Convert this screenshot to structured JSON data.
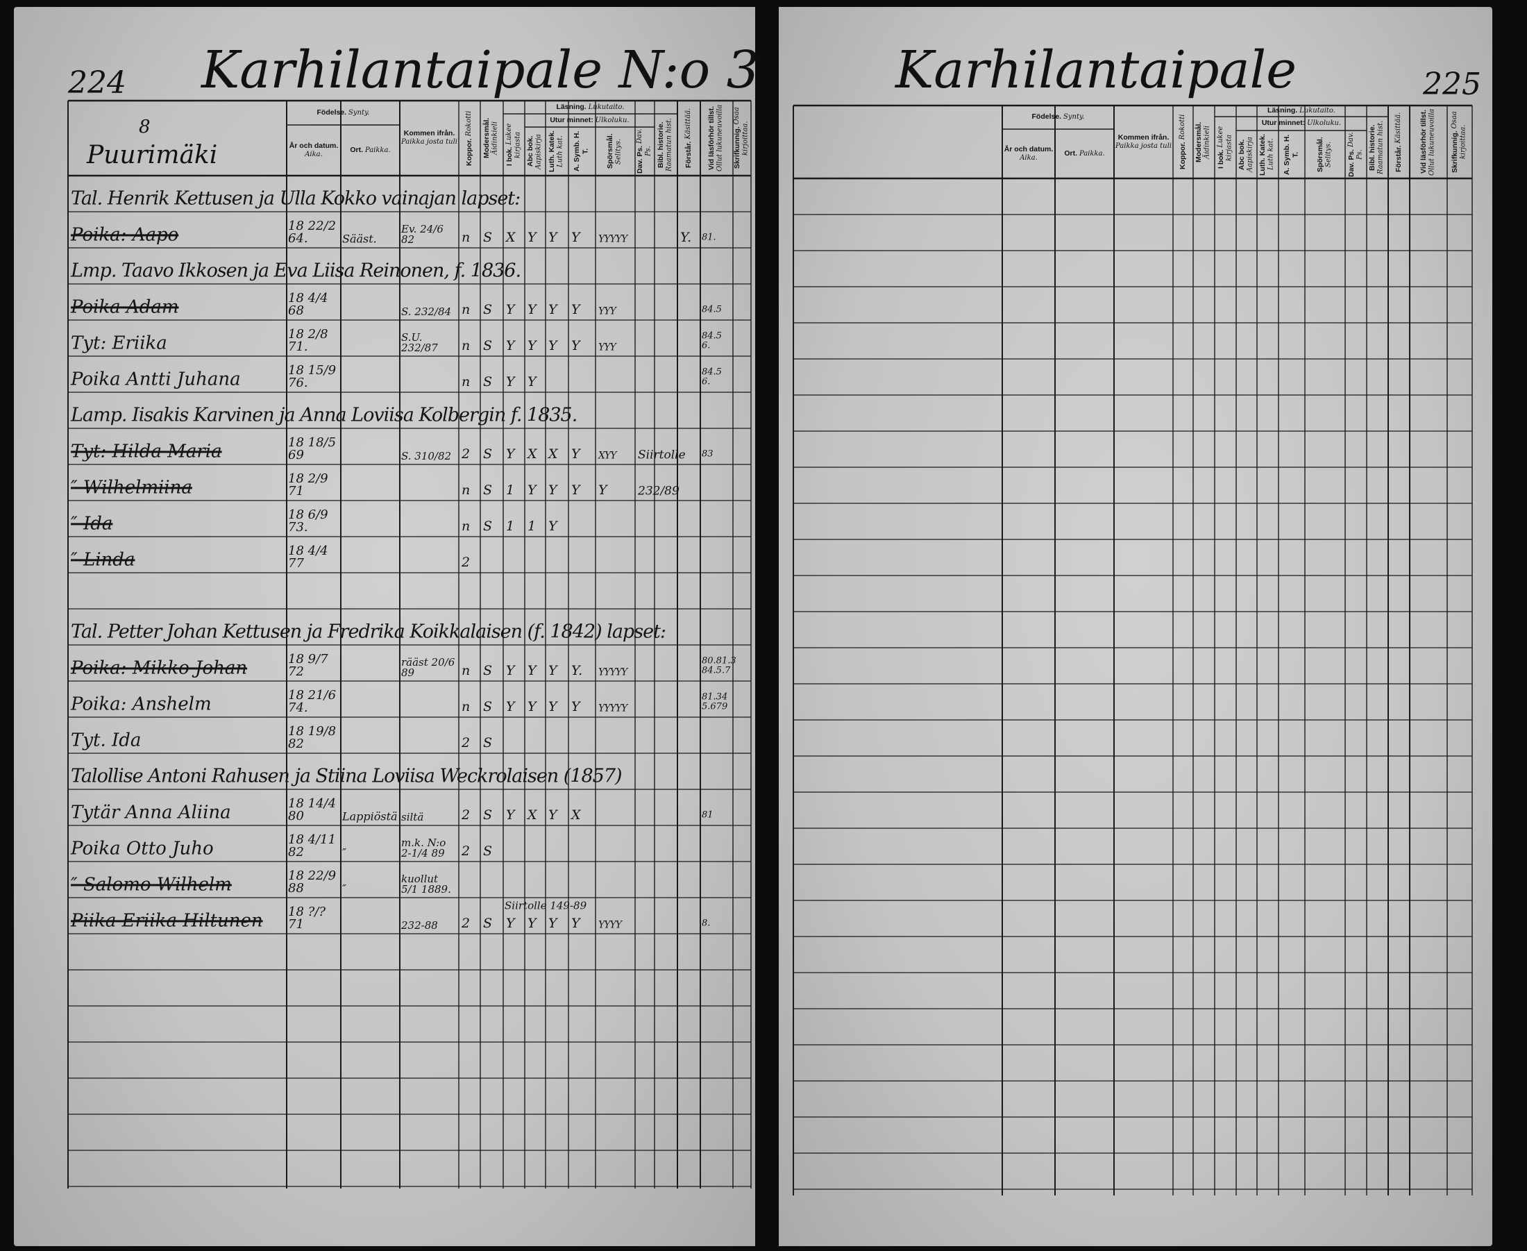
{
  "header": {
    "fodelse": "Födelse.",
    "fodelse_fi": "Synty.",
    "ar": "År och datum.",
    "ar_fi": "Aika.",
    "ort": "Ort.",
    "ort_fi": "Paikka.",
    "kommen": "Kommen ifrån.",
    "kommen_fi": "Paikka josta tuli",
    "koppor": "Koppor.",
    "koppor_fi": "Rokotti",
    "modersmal": "Modersmål.",
    "modersmal_fi": "Äidinkieli",
    "lasning": "Läsning.",
    "lasning_fi": "Lukutaito.",
    "ibok": "I bok.",
    "ibok_fi": "Lukee kirjasta",
    "utur": "Utur minnet:",
    "utur_fi": "Ulkoluku.",
    "abc": "Abc bok.",
    "abc_fi": "Aapiskirja",
    "luth": "Luth. Katek.",
    "luth_fi": "Luth kat.",
    "symb": "A. Symb. H. T.",
    "symb_fi": "",
    "sporsmal": "Spörsmål.",
    "sporsmal_fi": "Selitys.",
    "dav": "Dav. Ps.",
    "dav_fi": "Dav. Ps.",
    "bibl": "Bibl. historie.",
    "bibl_fi": "Raamatun hist.",
    "forstar": "Förstår.",
    "forstar_fi": "Käsittää.",
    "vid": "Vid läsförhör tillst.",
    "vid_fi": "Ollut lukuneuvoilla",
    "skrif": "Skrifkunnig.",
    "skrif_fi": "Osaa kirjoittaa."
  },
  "left_page": {
    "page_number": "224",
    "title": "Karhilantaipale N:o 3",
    "section_number": "8",
    "section_name": "Puurimäki",
    "rows": [
      {
        "heading": "Tal. Henrik Kettusen ja Ulla Kokko vainajan lapset:"
      },
      {
        "name": "Poika: Aapo",
        "struck": true,
        "date": "18 22/2 64.",
        "place": "Sääst.",
        "from": "Ev. 24/6 82",
        "marks": [
          "n",
          "S",
          "X",
          "Y",
          "Y",
          "Y",
          "YYYYY",
          "",
          "",
          "Y."
        ],
        "margin": "81."
      },
      {
        "heading": "Lmp. Taavo Ikkosen ja Eva Liisa Reinonen, f. 1836."
      },
      {
        "name": "Poika Adam",
        "struck": true,
        "date": "18 4/4 68",
        "from": "S. 232/84",
        "marks": [
          "n",
          "S",
          "Y",
          "Y",
          "Y",
          "Y",
          "YYY"
        ],
        "margin": "84.5"
      },
      {
        "name": "Tyt: Eriika",
        "struck": false,
        "date": "18 2/8 71.",
        "from": "S.U. 232/87",
        "marks": [
          "n",
          "S",
          "Y",
          "Y",
          "Y",
          "Y",
          "YYY"
        ],
        "margin": "84.5 6."
      },
      {
        "name": "Poika Antti Juhana",
        "struck": false,
        "date": "18 15/9 76.",
        "marks": [
          "n",
          "S",
          "Y",
          "Y"
        ],
        "margin": "84.5 6."
      },
      {
        "heading": "Lamp. Iisakis Karvinen ja Anna Loviisa Kolbergin f. 1835."
      },
      {
        "name": "Tyt: Hilda Maria",
        "struck": true,
        "date": "18 18/5 69",
        "from": "S. 310/82",
        "marks": [
          "2",
          "S",
          "Y",
          "X",
          "X",
          "Y",
          "XYY"
        ],
        "note": "Siirtolle",
        "margin": "83"
      },
      {
        "name": "″ Wilhelmiina",
        "struck": true,
        "date": "18 2/9 71",
        "marks": [
          "n",
          "S",
          "1",
          "Y",
          "Y",
          "Y",
          "Y"
        ],
        "note": "232/89"
      },
      {
        "name": "″ Ida",
        "struck": true,
        "date": "18 6/9 73.",
        "marks": [
          "n",
          "S",
          "1",
          "1",
          "Y"
        ]
      },
      {
        "name": "″ Linda",
        "struck": true,
        "date": "18 4/4 77",
        "marks": [
          "2"
        ]
      },
      {
        "heading": "Tal. Petter Johan Kettusen ja Fredrika Koikkalaisen (f. 1842) lapset:"
      },
      {
        "name": "Poika: Mikko Johan",
        "struck": true,
        "date": "18 9/7 72",
        "from": "rääst 20/6 89",
        "marks": [
          "n",
          "S",
          "Y",
          "Y",
          "Y",
          "Y.",
          "YYYYY"
        ],
        "margin": "80.81.3 84.5.7"
      },
      {
        "name": "Poika: Anshelm",
        "struck": false,
        "date": "18 21/6 74.",
        "marks": [
          "n",
          "S",
          "Y",
          "Y",
          "Y",
          "Y",
          "YYYYY"
        ],
        "margin": "81.34 5.679"
      },
      {
        "name": "Tyt. Ida",
        "struck": false,
        "date": "18 19/8 82",
        "marks": [
          "2",
          "S"
        ]
      },
      {
        "heading": "Talollise Antoni Rahusen ja Stiina Loviisa Weckrolaisen (1857)"
      },
      {
        "name": "Tytär Anna Aliina",
        "struck": false,
        "date": "18 14/4 80",
        "place": "Lappiöstä",
        "from": "siltä",
        "marks": [
          "2",
          "S",
          "Y",
          "X",
          "Y",
          "X"
        ],
        "margin": "81"
      },
      {
        "name": "Poika Otto Juho",
        "struck": false,
        "date": "18 4/11 82",
        "place": "″",
        "from": "m.k. N:o 2-1/4 89",
        "marks": [
          "2",
          "S"
        ]
      },
      {
        "name": "″ Salomo Wilhelm",
        "struck": true,
        "date": "18 22/9 88",
        "place": "″",
        "from": "kuollut 5/1 1889."
      },
      {
        "name": "Piika Eriika Hiltunen",
        "struck": true,
        "date": "18 ?/? 71",
        "from": "232-88",
        "marks": [
          "2",
          "S",
          "Y",
          "Y",
          "Y",
          "Y",
          "YYYY"
        ],
        "note_above": "Siirtolle 149-89",
        "margin": "8."
      }
    ]
  },
  "right_page": {
    "page_number": "225",
    "title": "Karhilantaipale"
  }
}
